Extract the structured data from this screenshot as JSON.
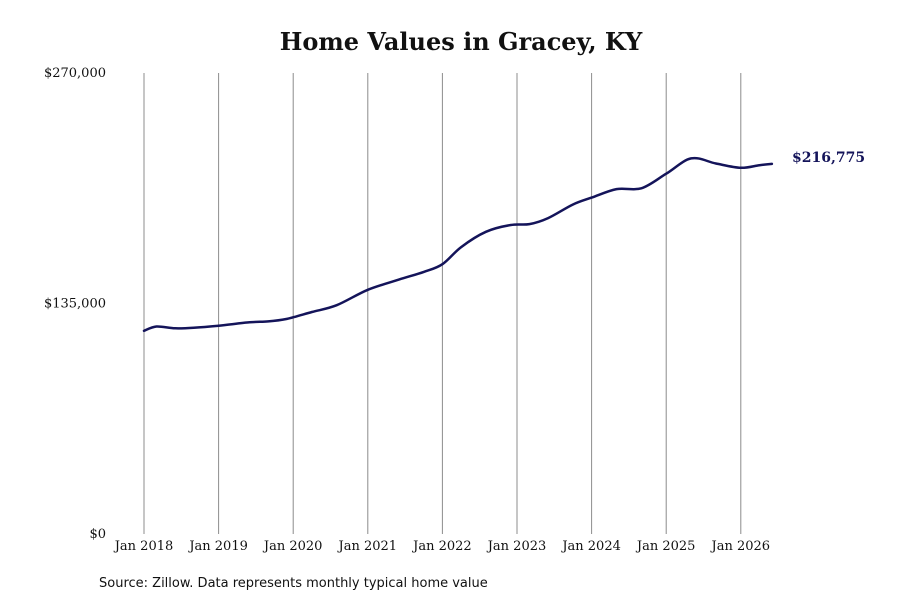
{
  "colors": {
    "line": "#14145a",
    "grid": "#8c8c8c",
    "text": "#111111"
  },
  "chart_data": {
    "type": "line",
    "title": "Home Values in Gracey, KY",
    "xlabel": "",
    "ylabel": "",
    "ylim": [
      0,
      270000
    ],
    "yticks": [
      0,
      135000,
      270000
    ],
    "ytick_labels": [
      "$0",
      "$135,000",
      "$270,000"
    ],
    "xlim": [
      "2018-01",
      "2026-06"
    ],
    "xticks": [
      "2018-01",
      "2019-01",
      "2020-01",
      "2021-01",
      "2022-01",
      "2023-01",
      "2024-01",
      "2025-01",
      "2026-01"
    ],
    "xtick_labels": [
      "Jan 2018",
      "Jan 2019",
      "Jan 2020",
      "Jan 2021",
      "Jan 2022",
      "Jan 2023",
      "Jan 2024",
      "Jan 2025",
      "Jan 2026"
    ],
    "grid": "vertical",
    "end_label": "$216,775",
    "source": "Source: Zillow. Data represents monthly typical home value",
    "series": [
      {
        "x": [
          "2018-01",
          "2018-03",
          "2018-06",
          "2018-09",
          "2019-01",
          "2019-06",
          "2019-09",
          "2019-12",
          "2020-04",
          "2020-08",
          "2021-01",
          "2021-06",
          "2021-10",
          "2022-01",
          "2022-04",
          "2022-08",
          "2022-12",
          "2023-03",
          "2023-06",
          "2023-10",
          "2024-01",
          "2024-05",
          "2024-09",
          "2025-01",
          "2025-05",
          "2025-09",
          "2026-01",
          "2026-04",
          "2026-06"
        ],
        "values": [
          119000,
          121500,
          120500,
          120800,
          122000,
          124000,
          124500,
          126000,
          130000,
          134000,
          143000,
          149000,
          153500,
          158000,
          168000,
          177000,
          181000,
          181500,
          185000,
          193000,
          197000,
          202000,
          202500,
          211000,
          220000,
          217000,
          214500,
          216000,
          216775
        ]
      }
    ]
  }
}
